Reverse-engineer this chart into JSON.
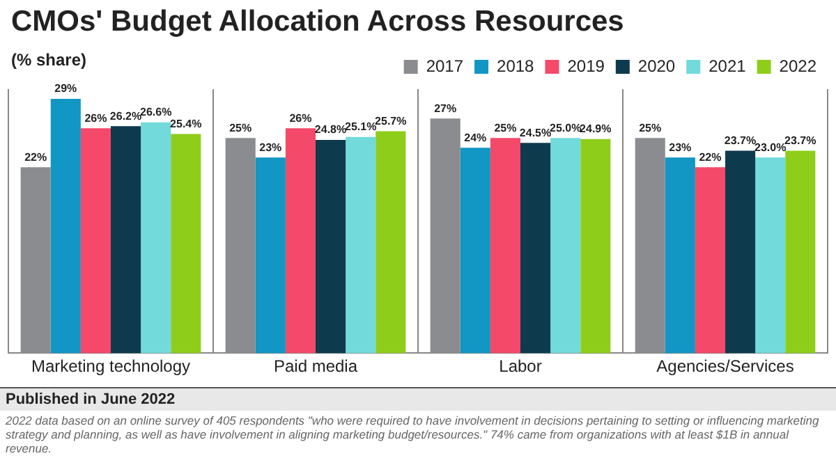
{
  "chart_data": {
    "type": "bar",
    "title": "CMOs' Budget Allocation Across Resources",
    "subtitle": "(% share)",
    "categories": [
      "Marketing technology",
      "Paid media",
      "Labor",
      "Agencies/Services"
    ],
    "series": [
      {
        "name": "2017",
        "color": "#8a8c90",
        "values": [
          22,
          25,
          27,
          25
        ],
        "value_labels": [
          "22%",
          "25%",
          "27%",
          "25%"
        ]
      },
      {
        "name": "2018",
        "color": "#1296c4",
        "values": [
          29,
          23,
          24,
          23
        ],
        "value_labels": [
          "29%",
          "23%",
          "24%",
          "23%"
        ]
      },
      {
        "name": "2019",
        "color": "#f5496a",
        "values": [
          26,
          26,
          25,
          22
        ],
        "value_labels": [
          "26%",
          "26%",
          "25%",
          "22%"
        ]
      },
      {
        "name": "2020",
        "color": "#0e3a4e",
        "values": [
          26.2,
          24.8,
          24.5,
          23.7
        ],
        "value_labels": [
          "26.2%",
          "24.8%",
          "24.5%",
          "23.7%"
        ]
      },
      {
        "name": "2021",
        "color": "#72dada",
        "values": [
          26.6,
          25.1,
          25.0,
          23.0
        ],
        "value_labels": [
          "26.6%",
          "25.1%",
          "25.0%",
          "23.0%"
        ]
      },
      {
        "name": "2022",
        "color": "#8fcd1b",
        "values": [
          25.4,
          25.7,
          24.9,
          23.7
        ],
        "value_labels": [
          "25.4%",
          "25.7%",
          "24.9%",
          "23.7%"
        ]
      }
    ],
    "ylim": [
      3,
      30
    ],
    "grid": "x",
    "legend": "top right",
    "tick_labels": "x",
    "annotations": [
      "Published in June 2022",
      "2022 data based on an online survey of 405 respondents \"who were required to have involvement in decisions pertaining to setting or influencing marketing strategy and planning, as well as have involvement in aligning marketing budget/resources.\" 74% came from organizations with at least $1B in annual revenue."
    ]
  }
}
